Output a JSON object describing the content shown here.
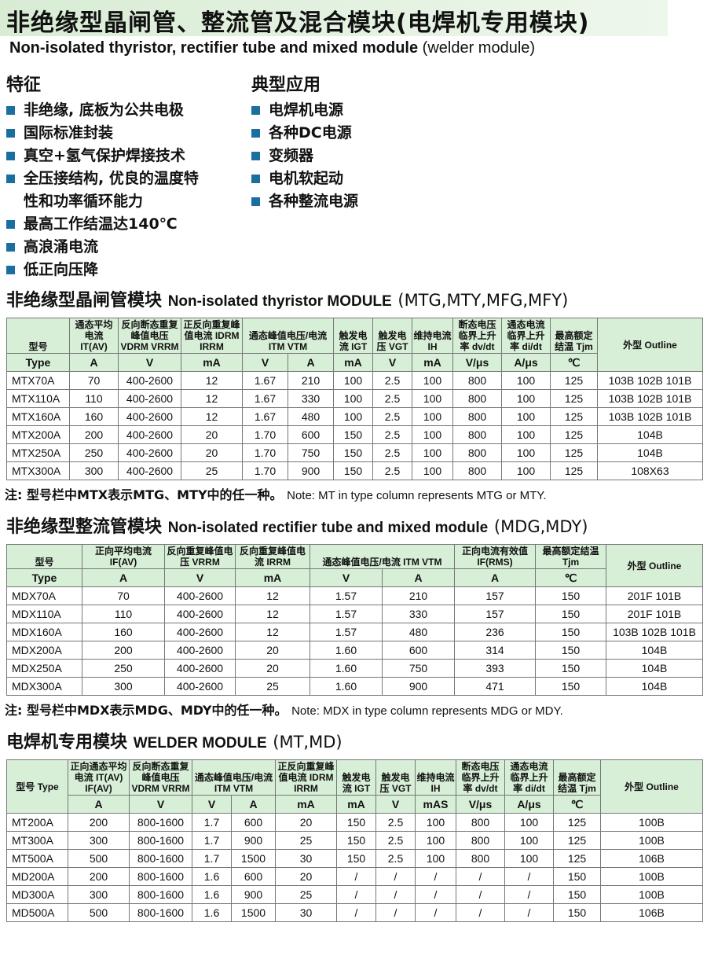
{
  "title_cn": "非绝缘型晶闸管、整流管及混合模块(电焊机专用模块)",
  "title_en": "Non-isolated thyristor, rectifier tube and mixed module",
  "title_en_paren": "(welder module)",
  "features": {
    "heading": "特征",
    "items": [
      "非绝缘, 底板为公共电极",
      "国际标准封装",
      "真空+氢气保护焊接技术",
      "全压接结构, 优良的温度特",
      "性和功率循环能力",
      "最高工作结温达140℃",
      "高浪涌电流",
      "低正向压降"
    ]
  },
  "applications": {
    "heading": "典型应用",
    "items": [
      "电焊机电源",
      "各种DC电源",
      "变频器",
      "电机软起动",
      "各种整流电源"
    ]
  },
  "table1": {
    "heading_cn": "非绝缘型晶闸管模块",
    "heading_en": "Non-isolated thyristor MODULE",
    "heading_paren": "(MTG,MTY,MFG,MFY)",
    "headers": [
      "型号",
      "通态平均电流 IT(AV)",
      "反向断态重复峰值电压 VDRM VRRM",
      "正反向重复峰值电流 IDRM IRRM",
      "通态峰值电压/电流 ITM VTM",
      "触发电流 IGT",
      "触发电压 VGT",
      "维持电流 IH",
      "断态电压临界上升率 dv/dt",
      "通态电流临界上升率 di/dt",
      "最高额定结温 Tjm",
      "外型 Outline"
    ],
    "type_en": "Type",
    "units": [
      "A",
      "V",
      "mA",
      "V",
      "A",
      "mA",
      "V",
      "mA",
      "V/μs",
      "A/μs",
      "℃"
    ],
    "rows": [
      [
        "MTX70A",
        "70",
        "400-2600",
        "12",
        "1.67",
        "210",
        "100",
        "2.5",
        "100",
        "800",
        "100",
        "125",
        "103B 102B 101B"
      ],
      [
        "MTX110A",
        "110",
        "400-2600",
        "12",
        "1.67",
        "330",
        "100",
        "2.5",
        "100",
        "800",
        "100",
        "125",
        "103B 102B 101B"
      ],
      [
        "MTX160A",
        "160",
        "400-2600",
        "12",
        "1.67",
        "480",
        "100",
        "2.5",
        "100",
        "800",
        "100",
        "125",
        "103B 102B 101B"
      ],
      [
        "MTX200A",
        "200",
        "400-2600",
        "20",
        "1.70",
        "600",
        "150",
        "2.5",
        "100",
        "800",
        "100",
        "125",
        "104B"
      ],
      [
        "MTX250A",
        "250",
        "400-2600",
        "20",
        "1.70",
        "750",
        "150",
        "2.5",
        "100",
        "800",
        "100",
        "125",
        "104B"
      ],
      [
        "MTX300A",
        "300",
        "400-2600",
        "25",
        "1.70",
        "900",
        "150",
        "2.5",
        "100",
        "800",
        "100",
        "125",
        "108X63"
      ]
    ],
    "note_cn": "注: 型号栏中MTX表示MTG、MTY中的任一种。",
    "note_en": "Note: MT in type column represents MTG or MTY."
  },
  "table2": {
    "heading_cn": "非绝缘型整流管模块",
    "heading_en": "Non-isolated rectifier tube and mixed module",
    "heading_paren": "(MDG,MDY)",
    "headers": [
      "型号",
      "正向平均电流 IF(AV)",
      "反向重复峰值电压 VRRM",
      "反向重复峰值电流 IRRM",
      "通态峰值电压/电流 ITM VTM",
      "正向电流有效值 IF(RMS)",
      "最高额定结温 Tjm",
      "外型 Outline"
    ],
    "type_en": "Type",
    "units": [
      "A",
      "V",
      "mA",
      "V",
      "A",
      "A",
      "℃"
    ],
    "rows": [
      [
        "MDX70A",
        "70",
        "400-2600",
        "12",
        "1.57",
        "210",
        "157",
        "150",
        "201F 101B"
      ],
      [
        "MDX110A",
        "110",
        "400-2600",
        "12",
        "1.57",
        "330",
        "157",
        "150",
        "201F 101B"
      ],
      [
        "MDX160A",
        "160",
        "400-2600",
        "12",
        "1.57",
        "480",
        "236",
        "150",
        "103B 102B 101B"
      ],
      [
        "MDX200A",
        "200",
        "400-2600",
        "20",
        "1.60",
        "600",
        "314",
        "150",
        "104B"
      ],
      [
        "MDX250A",
        "250",
        "400-2600",
        "20",
        "1.60",
        "750",
        "393",
        "150",
        "104B"
      ],
      [
        "MDX300A",
        "300",
        "400-2600",
        "25",
        "1.60",
        "900",
        "471",
        "150",
        "104B"
      ]
    ],
    "note_cn": "注: 型号栏中MDX表示MDG、MDY中的任一种。",
    "note_en": "Note: MDX in type column represents MDG or MDY."
  },
  "table3": {
    "heading_cn": "电焊机专用模块",
    "heading_en": "WELDER MODULE",
    "heading_paren": "(MT,MD)",
    "headers": [
      "型号 Type",
      "正向通态平均电流 IT(AV) IF(AV)",
      "反向断态重复峰值电压 VDRM VRRM",
      "通态峰值电压/电流 ITM VTM",
      "正反向重复峰值电流 IDRM IRRM",
      "触发电流 IGT",
      "触发电压 VGT",
      "维持电流 IH",
      "断态电压临界上升率 dv/dt",
      "通态电流临界上升率 di/dt",
      "最高额定结温 Tjm",
      "外型 Outline"
    ],
    "units": [
      "A",
      "V",
      "V",
      "A",
      "mA",
      "mA",
      "V",
      "mAS",
      "V/μs",
      "A/μs",
      "℃"
    ],
    "rows": [
      [
        "MT200A",
        "200",
        "800-1600",
        "1.7",
        "600",
        "20",
        "150",
        "2.5",
        "100",
        "800",
        "100",
        "125",
        "100B"
      ],
      [
        "MT300A",
        "300",
        "800-1600",
        "1.7",
        "900",
        "25",
        "150",
        "2.5",
        "100",
        "800",
        "100",
        "125",
        "100B"
      ],
      [
        "MT500A",
        "500",
        "800-1600",
        "1.7",
        "1500",
        "30",
        "150",
        "2.5",
        "100",
        "800",
        "100",
        "125",
        "106B"
      ],
      [
        "MD200A",
        "200",
        "800-1600",
        "1.6",
        "600",
        "20",
        "/",
        "/",
        "/",
        "/",
        "/",
        "150",
        "100B"
      ],
      [
        "MD300A",
        "300",
        "800-1600",
        "1.6",
        "900",
        "25",
        "/",
        "/",
        "/",
        "/",
        "/",
        "150",
        "100B"
      ],
      [
        "MD500A",
        "500",
        "800-1600",
        "1.6",
        "1500",
        "30",
        "/",
        "/",
        "/",
        "/",
        "/",
        "150",
        "106B"
      ]
    ]
  }
}
